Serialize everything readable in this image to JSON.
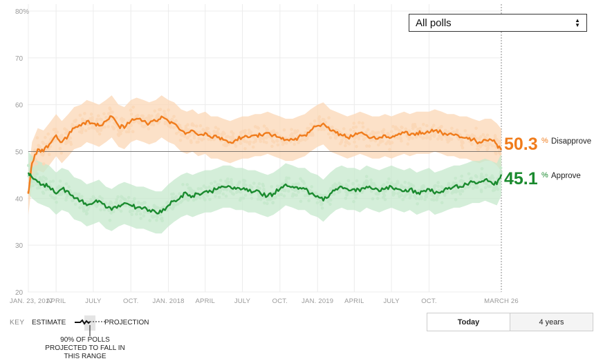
{
  "filter": {
    "selected": "All polls"
  },
  "chart_data": {
    "type": "line",
    "ylim": [
      20,
      80
    ],
    "y_ticks": [
      20,
      30,
      40,
      50,
      60,
      70,
      80
    ],
    "y_tick_labels": [
      "20",
      "30",
      "40",
      "50",
      "60",
      "70",
      "80%"
    ],
    "x_start": "2017-01-23",
    "x_end": "2020-03-26",
    "x_ticks": [
      {
        "date": "2017-01-23",
        "label": "JAN. 23, 2017"
      },
      {
        "date": "2017-04-01",
        "label": "APRIL"
      },
      {
        "date": "2017-07-01",
        "label": "JULY"
      },
      {
        "date": "2017-10-01",
        "label": "OCT."
      },
      {
        "date": "2018-01-01",
        "label": "JAN. 2018"
      },
      {
        "date": "2018-04-01",
        "label": "APRIL"
      },
      {
        "date": "2018-07-01",
        "label": "JULY"
      },
      {
        "date": "2018-10-01",
        "label": "OCT."
      },
      {
        "date": "2019-01-01",
        "label": "JAN. 2019"
      },
      {
        "date": "2019-04-01",
        "label": "APRIL"
      },
      {
        "date": "2019-07-01",
        "label": "JULY"
      },
      {
        "date": "2019-10-01",
        "label": "OCT."
      },
      {
        "date": "2020-03-26",
        "label": "MARCH 26"
      }
    ],
    "reference_line": 50,
    "series": [
      {
        "name": "Disapprove",
        "color": "#f07c1c",
        "band_color": "#fbd7b6",
        "current": "50.3",
        "points": [
          [
            "2017-01-23",
            41.0
          ],
          [
            "2017-02-01",
            47.5
          ],
          [
            "2017-02-15",
            50.5
          ],
          [
            "2017-03-01",
            50.0
          ],
          [
            "2017-03-15",
            51.5
          ],
          [
            "2017-04-01",
            53.5
          ],
          [
            "2017-04-15",
            52.0
          ],
          [
            "2017-05-01",
            53.5
          ],
          [
            "2017-05-15",
            55.0
          ],
          [
            "2017-06-01",
            55.5
          ],
          [
            "2017-06-15",
            56.5
          ],
          [
            "2017-07-01",
            56.0
          ],
          [
            "2017-07-15",
            55.5
          ],
          [
            "2017-08-01",
            56.5
          ],
          [
            "2017-08-15",
            57.5
          ],
          [
            "2017-09-01",
            55.5
          ],
          [
            "2017-09-15",
            55.0
          ],
          [
            "2017-10-01",
            56.5
          ],
          [
            "2017-10-15",
            57.0
          ],
          [
            "2017-11-01",
            56.5
          ],
          [
            "2017-11-15",
            56.0
          ],
          [
            "2017-12-01",
            56.5
          ],
          [
            "2017-12-15",
            57.5
          ],
          [
            "2018-01-01",
            56.5
          ],
          [
            "2018-01-15",
            56.0
          ],
          [
            "2018-02-01",
            54.5
          ],
          [
            "2018-02-15",
            54.0
          ],
          [
            "2018-03-01",
            54.5
          ],
          [
            "2018-03-15",
            53.5
          ],
          [
            "2018-04-01",
            54.0
          ],
          [
            "2018-04-15",
            53.0
          ],
          [
            "2018-05-01",
            53.0
          ],
          [
            "2018-05-15",
            52.5
          ],
          [
            "2018-06-01",
            52.0
          ],
          [
            "2018-06-15",
            52.5
          ],
          [
            "2018-07-01",
            53.0
          ],
          [
            "2018-07-15",
            53.0
          ],
          [
            "2018-08-01",
            53.5
          ],
          [
            "2018-08-15",
            53.5
          ],
          [
            "2018-09-01",
            54.0
          ],
          [
            "2018-09-15",
            53.5
          ],
          [
            "2018-10-01",
            53.0
          ],
          [
            "2018-10-15",
            52.5
          ],
          [
            "2018-11-01",
            52.5
          ],
          [
            "2018-11-15",
            53.0
          ],
          [
            "2018-12-01",
            53.5
          ],
          [
            "2018-12-15",
            54.5
          ],
          [
            "2019-01-01",
            55.5
          ],
          [
            "2019-01-15",
            56.0
          ],
          [
            "2019-02-01",
            54.5
          ],
          [
            "2019-02-15",
            54.0
          ],
          [
            "2019-03-01",
            53.5
          ],
          [
            "2019-03-15",
            53.0
          ],
          [
            "2019-04-01",
            53.5
          ],
          [
            "2019-04-15",
            54.0
          ],
          [
            "2019-05-01",
            53.5
          ],
          [
            "2019-05-15",
            53.0
          ],
          [
            "2019-06-01",
            53.0
          ],
          [
            "2019-06-15",
            53.5
          ],
          [
            "2019-07-01",
            53.0
          ],
          [
            "2019-07-15",
            53.5
          ],
          [
            "2019-08-01",
            54.0
          ],
          [
            "2019-08-15",
            53.5
          ],
          [
            "2019-09-01",
            54.0
          ],
          [
            "2019-09-15",
            54.0
          ],
          [
            "2019-10-01",
            54.0
          ],
          [
            "2019-10-15",
            54.5
          ],
          [
            "2019-11-01",
            54.0
          ],
          [
            "2019-11-15",
            53.5
          ],
          [
            "2019-12-01",
            53.5
          ],
          [
            "2019-12-15",
            53.0
          ],
          [
            "2020-01-01",
            53.0
          ],
          [
            "2020-01-15",
            52.5
          ],
          [
            "2020-02-01",
            52.0
          ],
          [
            "2020-02-15",
            52.5
          ],
          [
            "2020-03-01",
            52.5
          ],
          [
            "2020-03-15",
            51.5
          ],
          [
            "2020-03-26",
            50.3
          ]
        ]
      },
      {
        "name": "Approve",
        "color": "#1a8a2e",
        "band_color": "#c6e8cc",
        "current": "45.1",
        "points": [
          [
            "2017-01-23",
            45.5
          ],
          [
            "2017-02-01",
            44.5
          ],
          [
            "2017-02-15",
            43.5
          ],
          [
            "2017-03-01",
            43.0
          ],
          [
            "2017-03-15",
            42.5
          ],
          [
            "2017-04-01",
            41.0
          ],
          [
            "2017-04-15",
            42.0
          ],
          [
            "2017-05-01",
            41.5
          ],
          [
            "2017-05-15",
            40.0
          ],
          [
            "2017-06-01",
            39.5
          ],
          [
            "2017-06-15",
            38.5
          ],
          [
            "2017-07-01",
            39.0
          ],
          [
            "2017-07-15",
            39.5
          ],
          [
            "2017-08-01",
            38.0
          ],
          [
            "2017-08-15",
            37.5
          ],
          [
            "2017-09-01",
            38.5
          ],
          [
            "2017-09-15",
            39.0
          ],
          [
            "2017-10-01",
            38.5
          ],
          [
            "2017-10-15",
            38.0
          ],
          [
            "2017-11-01",
            38.0
          ],
          [
            "2017-11-15",
            37.5
          ],
          [
            "2017-12-01",
            37.0
          ],
          [
            "2017-12-15",
            37.0
          ],
          [
            "2018-01-01",
            38.5
          ],
          [
            "2018-01-15",
            39.5
          ],
          [
            "2018-02-01",
            40.5
          ],
          [
            "2018-02-15",
            41.0
          ],
          [
            "2018-03-01",
            40.5
          ],
          [
            "2018-03-15",
            41.0
          ],
          [
            "2018-04-01",
            41.5
          ],
          [
            "2018-04-15",
            41.5
          ],
          [
            "2018-05-01",
            42.0
          ],
          [
            "2018-05-15",
            42.5
          ],
          [
            "2018-06-01",
            42.5
          ],
          [
            "2018-06-15",
            42.0
          ],
          [
            "2018-07-01",
            42.0
          ],
          [
            "2018-07-15",
            41.5
          ],
          [
            "2018-08-01",
            41.5
          ],
          [
            "2018-08-15",
            41.0
          ],
          [
            "2018-09-01",
            40.5
          ],
          [
            "2018-09-15",
            41.0
          ],
          [
            "2018-10-01",
            42.0
          ],
          [
            "2018-10-15",
            43.0
          ],
          [
            "2018-11-01",
            42.5
          ],
          [
            "2018-11-15",
            42.0
          ],
          [
            "2018-12-01",
            42.0
          ],
          [
            "2018-12-15",
            41.0
          ],
          [
            "2019-01-01",
            40.5
          ],
          [
            "2019-01-15",
            39.5
          ],
          [
            "2019-02-01",
            41.0
          ],
          [
            "2019-02-15",
            42.0
          ],
          [
            "2019-03-01",
            42.5
          ],
          [
            "2019-03-15",
            42.0
          ],
          [
            "2019-04-01",
            42.0
          ],
          [
            "2019-04-15",
            41.5
          ],
          [
            "2019-05-01",
            42.5
          ],
          [
            "2019-05-15",
            42.0
          ],
          [
            "2019-06-01",
            41.5
          ],
          [
            "2019-06-15",
            42.0
          ],
          [
            "2019-07-01",
            42.5
          ],
          [
            "2019-07-15",
            42.0
          ],
          [
            "2019-08-01",
            41.5
          ],
          [
            "2019-08-15",
            42.0
          ],
          [
            "2019-09-01",
            41.0
          ],
          [
            "2019-09-15",
            41.5
          ],
          [
            "2019-10-01",
            42.0
          ],
          [
            "2019-10-15",
            41.0
          ],
          [
            "2019-11-01",
            41.5
          ],
          [
            "2019-11-15",
            42.0
          ],
          [
            "2019-12-01",
            42.5
          ],
          [
            "2019-12-15",
            42.5
          ],
          [
            "2020-01-01",
            43.0
          ],
          [
            "2020-01-15",
            43.5
          ],
          [
            "2020-02-01",
            43.5
          ],
          [
            "2020-02-15",
            44.0
          ],
          [
            "2020-03-01",
            43.5
          ],
          [
            "2020-03-15",
            43.0
          ],
          [
            "2020-03-26",
            45.1
          ]
        ]
      }
    ]
  },
  "key": {
    "title": "KEY",
    "estimate": "ESTIMATE",
    "projection": "PROJECTION",
    "note": "90% OF POLLS PROJECTED TO FALL IN THIS RANGE"
  },
  "toggle": {
    "today": "Today",
    "four_years": "4 years"
  }
}
